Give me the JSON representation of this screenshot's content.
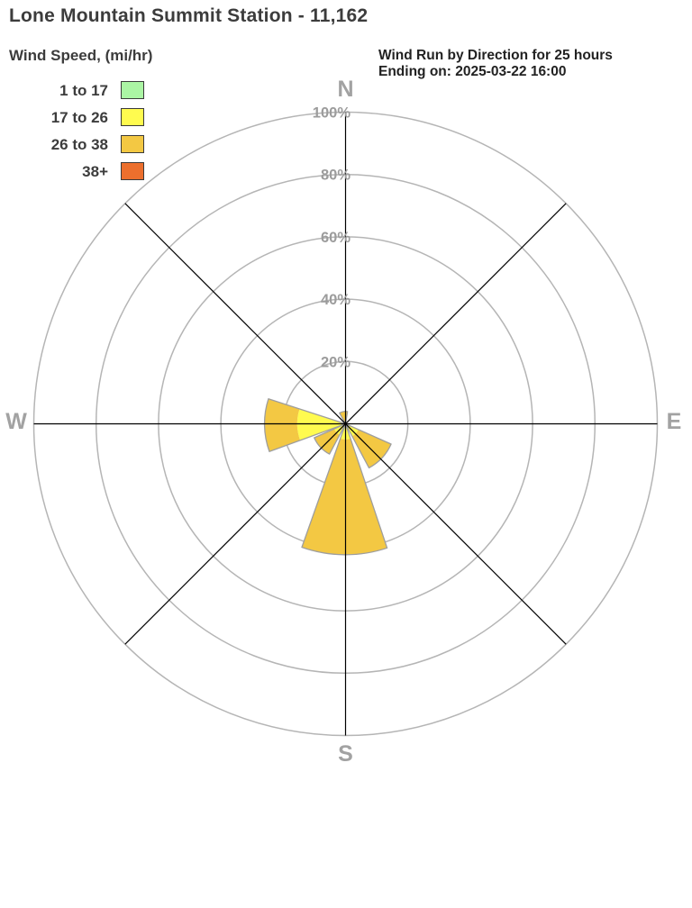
{
  "title": "Lone Mountain Summit Station - 11,162",
  "legend": {
    "heading": "Wind Speed, (mi/hr)",
    "items": [
      {
        "label": "1 to 17",
        "color": "#abf5a4"
      },
      {
        "label": "17 to 26",
        "color": "#fffb4f"
      },
      {
        "label": "26 to 38",
        "color": "#f3c843"
      },
      {
        "label": "38+",
        "color": "#ec6f2d"
      }
    ]
  },
  "subtitle": {
    "line1": "Wind Run by Direction for 25 hours",
    "line2": "Ending on: 2025-03-22 16:00"
  },
  "chart_data": {
    "type": "wind-rose",
    "title": "Wind Run by Direction for 25 hours",
    "ending_on": "2025-03-22 16:00",
    "units": "percent of wind run",
    "speed_bins": [
      {
        "label": "1 to 17",
        "color": "#abf5a4"
      },
      {
        "label": "17 to 26",
        "color": "#fffb4f"
      },
      {
        "label": "26 to 38",
        "color": "#f3c843"
      },
      {
        "label": "38+",
        "color": "#ec6f2d"
      }
    ],
    "rings_pct": [
      20,
      40,
      60,
      80,
      100
    ],
    "ring_labels": [
      "20%",
      "40%",
      "60%",
      "80%",
      "100%"
    ],
    "compass_labels": [
      {
        "label": "N",
        "position": "top"
      },
      {
        "label": "E",
        "position": "right"
      },
      {
        "label": "S",
        "position": "bottom"
      },
      {
        "label": "W",
        "position": "left"
      }
    ],
    "petal_width_deg": 38,
    "petals": [
      {
        "direction": "N",
        "compass_deg": 350,
        "segments": [
          {
            "bin": "26 to 38",
            "from_pct": 0,
            "to_pct": 4
          }
        ]
      },
      {
        "direction": "SE",
        "compass_deg": 133,
        "segments": [
          {
            "bin": "17 to 26",
            "from_pct": 0,
            "to_pct": 4.5
          },
          {
            "bin": "26 to 38",
            "from_pct": 4.5,
            "to_pct": 16
          }
        ]
      },
      {
        "direction": "S",
        "compass_deg": 180.5,
        "segments": [
          {
            "bin": "17 to 26",
            "from_pct": 0,
            "to_pct": 5
          },
          {
            "bin": "26 to 38",
            "from_pct": 5,
            "to_pct": 42
          }
        ]
      },
      {
        "direction": "SW",
        "compass_deg": 227,
        "segments": [
          {
            "bin": "17 to 26",
            "from_pct": 0,
            "to_pct": 4
          },
          {
            "bin": "26 to 38",
            "from_pct": 4,
            "to_pct": 11
          }
        ]
      },
      {
        "direction": "W",
        "compass_deg": 269,
        "segments": [
          {
            "bin": "17 to 26",
            "from_pct": 0,
            "to_pct": 15.5
          },
          {
            "bin": "26 to 38",
            "from_pct": 15.5,
            "to_pct": 26
          }
        ]
      }
    ],
    "axis_ranges": {
      "radial_min_pct": 0,
      "radial_max_pct": 100
    },
    "grid": true,
    "legend_position": "top-left",
    "colors": {
      "grid_ring": "#b5b5b5",
      "axis_line": "#000000",
      "petal_outline": "#9e9e9e",
      "gray_label": "#9c9c9c",
      "text_dark": "#3c3c3c"
    }
  }
}
